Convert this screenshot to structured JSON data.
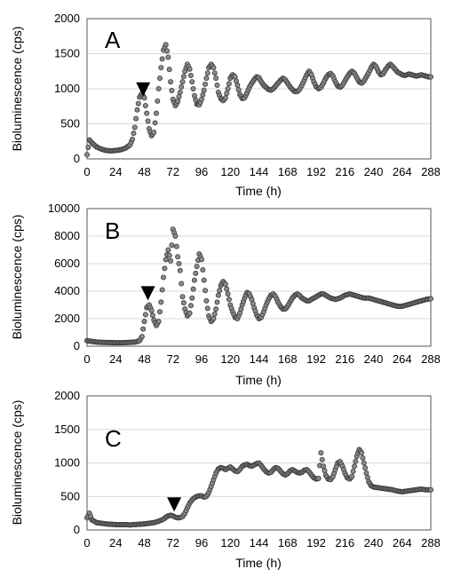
{
  "chart_data": [
    {
      "type": "scatter",
      "panel_label": "A",
      "xlabel": "Time (h)",
      "ylabel": "Bioluminescence (cps)",
      "xlim": [
        0,
        288
      ],
      "ylim": [
        0,
        2000
      ],
      "xticks": [
        0,
        24,
        48,
        72,
        96,
        120,
        144,
        168,
        192,
        216,
        240,
        264,
        288
      ],
      "yticks": [
        0,
        500,
        1000,
        1500,
        2000
      ],
      "marker_at": {
        "x": 47,
        "y": 990
      },
      "series": [
        {
          "x": [
            0,
            2,
            4,
            8,
            12,
            16,
            20,
            24,
            28,
            32,
            36,
            38,
            40,
            42,
            44,
            46,
            48,
            50,
            52,
            54,
            56,
            58,
            60,
            62,
            64,
            66,
            68,
            70,
            72,
            74,
            76,
            78,
            80,
            82,
            84,
            86,
            88,
            90,
            92,
            94,
            96,
            98,
            100,
            102,
            104,
            106,
            108,
            110,
            112,
            114,
            116,
            118,
            120,
            122,
            124,
            126,
            128,
            130,
            132,
            134,
            136,
            138,
            140,
            142,
            144,
            146,
            148,
            150,
            152,
            154,
            156,
            158,
            160,
            162,
            164,
            166,
            168,
            170,
            172,
            174,
            176,
            178,
            180,
            182,
            184,
            186,
            188,
            190,
            192,
            194,
            196,
            198,
            200,
            202,
            204,
            206,
            208,
            210,
            212,
            214,
            216,
            218,
            220,
            222,
            224,
            226,
            228,
            230,
            232,
            234,
            236,
            238,
            240,
            242,
            244,
            246,
            248,
            250,
            252,
            254,
            256,
            258,
            260,
            262,
            264,
            266,
            268,
            270,
            272,
            274,
            276,
            278,
            280,
            282,
            284,
            286,
            288
          ],
          "y": [
            60,
            270,
            230,
            170,
            140,
            120,
            115,
            120,
            130,
            150,
            200,
            280,
            450,
            700,
            880,
            930,
            870,
            650,
            430,
            330,
            380,
            650,
            1000,
            1300,
            1550,
            1630,
            1450,
            1100,
            850,
            760,
            820,
            950,
            1100,
            1250,
            1350,
            1280,
            1100,
            900,
            780,
            770,
            850,
            980,
            1150,
            1300,
            1350,
            1300,
            1150,
            950,
            860,
            830,
            870,
            1000,
            1150,
            1200,
            1170,
            1050,
            920,
            860,
            870,
            940,
            1020,
            1080,
            1130,
            1170,
            1160,
            1100,
            1050,
            1020,
            990,
            980,
            1000,
            1040,
            1080,
            1120,
            1150,
            1130,
            1080,
            1030,
            990,
            960,
            960,
            990,
            1050,
            1120,
            1200,
            1250,
            1200,
            1100,
            1030,
            1000,
            1020,
            1080,
            1150,
            1200,
            1220,
            1180,
            1100,
            1040,
            1020,
            1050,
            1110,
            1170,
            1220,
            1250,
            1220,
            1160,
            1100,
            1080,
            1110,
            1170,
            1230,
            1300,
            1350,
            1320,
            1250,
            1200,
            1210,
            1270,
            1320,
            1350,
            1320,
            1280,
            1240,
            1220,
            1200,
            1190,
            1200,
            1210,
            1200,
            1190,
            1180,
            1190,
            1200,
            1190,
            1180,
            1170,
            1170
          ]
        }
      ]
    },
    {
      "type": "scatter",
      "panel_label": "B",
      "xlabel": "Time (h)",
      "ylabel": "Bioluminescence (cps)",
      "xlim": [
        0,
        288
      ],
      "ylim": [
        0,
        10000
      ],
      "xticks": [
        0,
        24,
        48,
        72,
        96,
        120,
        144,
        168,
        192,
        216,
        240,
        264,
        288
      ],
      "yticks": [
        0,
        2000,
        4000,
        6000,
        8000,
        10000
      ],
      "marker_at": {
        "x": 51,
        "y": 3850
      },
      "series": [
        {
          "x": [
            0,
            4,
            8,
            12,
            16,
            20,
            24,
            28,
            32,
            36,
            40,
            44,
            46,
            48,
            50,
            52,
            54,
            56,
            58,
            60,
            62,
            64,
            66,
            68,
            70,
            72,
            74,
            76,
            78,
            80,
            82,
            84,
            86,
            88,
            90,
            92,
            94,
            96,
            98,
            100,
            102,
            104,
            106,
            108,
            110,
            112,
            114,
            116,
            118,
            120,
            122,
            124,
            126,
            128,
            130,
            132,
            134,
            136,
            138,
            140,
            142,
            144,
            146,
            148,
            150,
            152,
            154,
            156,
            158,
            160,
            162,
            164,
            166,
            168,
            170,
            172,
            174,
            176,
            178,
            180,
            182,
            184,
            186,
            188,
            190,
            192,
            194,
            196,
            198,
            200,
            204,
            208,
            212,
            216,
            220,
            224,
            228,
            232,
            236,
            240,
            244,
            248,
            252,
            256,
            260,
            264,
            268,
            272,
            276,
            280,
            284,
            288
          ],
          "y": [
            400,
            350,
            300,
            280,
            270,
            260,
            250,
            250,
            260,
            280,
            300,
            400,
            700,
            1800,
            2800,
            3000,
            2600,
            1900,
            1500,
            1800,
            3200,
            5000,
            6300,
            7000,
            6200,
            8500,
            8000,
            6500,
            5500,
            3600,
            2700,
            2200,
            2400,
            3500,
            4800,
            5800,
            6700,
            6300,
            4800,
            3300,
            2200,
            1800,
            2000,
            2700,
            3700,
            4400,
            4700,
            4500,
            3800,
            3000,
            2500,
            2100,
            2000,
            2400,
            3000,
            3500,
            3900,
            3800,
            3400,
            2800,
            2300,
            2000,
            2100,
            2500,
            3000,
            3400,
            3700,
            3800,
            3600,
            3200,
            2900,
            2700,
            2700,
            2900,
            3200,
            3500,
            3700,
            3800,
            3700,
            3500,
            3400,
            3300,
            3300,
            3400,
            3500,
            3600,
            3700,
            3800,
            3800,
            3700,
            3500,
            3400,
            3500,
            3700,
            3800,
            3700,
            3600,
            3500,
            3500,
            3400,
            3300,
            3200,
            3100,
            3000,
            2900,
            2900,
            3000,
            3100,
            3200,
            3300,
            3400,
            3450
          ]
        }
      ]
    },
    {
      "type": "scatter",
      "panel_label": "C",
      "xlabel": "Time (h)",
      "ylabel": "Bioluminescence (cps)",
      "xlim": [
        0,
        288
      ],
      "ylim": [
        0,
        2000
      ],
      "xticks": [
        0,
        24,
        48,
        72,
        96,
        120,
        144,
        168,
        192,
        216,
        240,
        264,
        288
      ],
      "yticks": [
        0,
        500,
        1000,
        1500,
        2000
      ],
      "marker_at": {
        "x": 73,
        "y": 380
      },
      "series": [
        {
          "x": [
            0,
            2,
            4,
            8,
            12,
            16,
            20,
            24,
            28,
            32,
            36,
            40,
            44,
            48,
            52,
            56,
            60,
            64,
            66,
            68,
            70,
            72,
            74,
            76,
            78,
            80,
            82,
            84,
            86,
            88,
            90,
            92,
            94,
            96,
            98,
            100,
            102,
            104,
            106,
            108,
            110,
            112,
            114,
            116,
            118,
            120,
            122,
            124,
            126,
            128,
            130,
            132,
            134,
            136,
            138,
            140,
            142,
            144,
            146,
            148,
            150,
            152,
            154,
            156,
            158,
            160,
            162,
            164,
            166,
            168,
            170,
            172,
            174,
            176,
            178,
            180,
            182,
            184,
            186,
            188,
            190,
            192,
            194,
            196,
            198,
            200,
            202,
            204,
            206,
            208,
            210,
            212,
            214,
            216,
            218,
            220,
            222,
            224,
            226,
            228,
            230,
            232,
            234,
            236,
            238,
            240,
            244,
            248,
            252,
            256,
            260,
            264,
            268,
            272,
            276,
            280,
            284,
            288
          ],
          "y": [
            180,
            250,
            150,
            110,
            100,
            90,
            85,
            80,
            80,
            80,
            75,
            80,
            85,
            90,
            100,
            110,
            130,
            160,
            190,
            210,
            220,
            210,
            190,
            180,
            185,
            200,
            250,
            330,
            400,
            450,
            480,
            500,
            510,
            510,
            490,
            500,
            560,
            650,
            750,
            850,
            910,
            930,
            920,
            900,
            920,
            940,
            910,
            880,
            870,
            900,
            950,
            970,
            980,
            960,
            950,
            970,
            990,
            1000,
            960,
            910,
            870,
            850,
            860,
            900,
            930,
            920,
            880,
            840,
            820,
            840,
            880,
            900,
            880,
            860,
            850,
            860,
            890,
            900,
            870,
            820,
            780,
            760,
            770,
            1150,
            950,
            820,
            760,
            750,
            800,
            900,
            1000,
            1020,
            950,
            850,
            780,
            760,
            800,
            950,
            1100,
            1200,
            1150,
            1000,
            850,
            720,
            660,
            640,
            630,
            620,
            610,
            600,
            580,
            570,
            580,
            590,
            600,
            610,
            600,
            600
          ]
        }
      ]
    }
  ]
}
